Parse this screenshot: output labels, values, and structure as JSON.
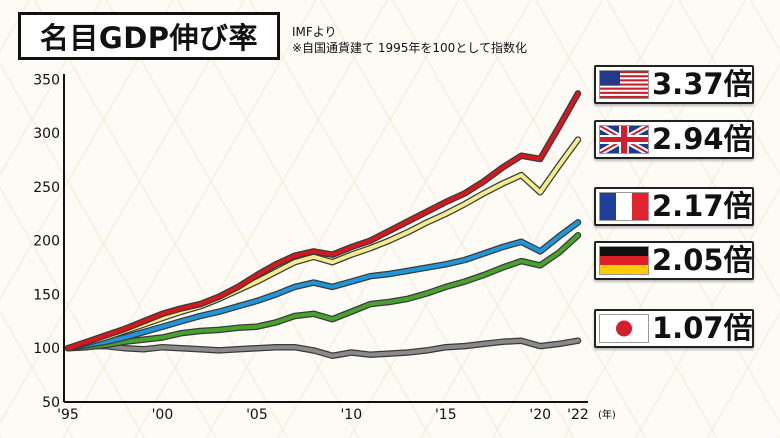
{
  "title": "名目GDP伸び率",
  "source_note": "IMFより",
  "currency_note": "※自国通貨建て 1995年を100として指数化",
  "colors": {
    "usa": "#d4191e",
    "uk": "#f3ec8d",
    "france": "#1f96d9",
    "germany": "#48a32c",
    "japan": "#8a8a8a"
  },
  "legend": [
    {
      "country": "usa",
      "flag": "us-flag-icon",
      "value": "3.37倍"
    },
    {
      "country": "uk",
      "flag": "uk-flag-icon",
      "value": "2.94倍"
    },
    {
      "country": "france",
      "flag": "france-flag-icon",
      "value": "2.17倍"
    },
    {
      "country": "germany",
      "flag": "germany-flag-icon",
      "value": "2.05倍"
    },
    {
      "country": "japan",
      "flag": "japan-flag-icon",
      "value": "1.07倍"
    }
  ],
  "chart_data": {
    "type": "line",
    "x": [
      1995,
      1996,
      1997,
      1998,
      1999,
      2000,
      2001,
      2002,
      2003,
      2004,
      2005,
      2006,
      2007,
      2008,
      2009,
      2010,
      2011,
      2012,
      2013,
      2014,
      2015,
      2016,
      2017,
      2018,
      2019,
      2020,
      2021,
      2022
    ],
    "x_tick_labels": [
      "'95",
      "'00",
      "'05",
      "'10",
      "'15",
      "'20",
      "'22"
    ],
    "x_tick_values": [
      1995,
      2000,
      2005,
      2010,
      2015,
      2020,
      2022
    ],
    "x_unit_label": "(年)",
    "y_tick_labels": [
      "50",
      "100",
      "150",
      "200",
      "250",
      "300",
      "350"
    ],
    "ylim": [
      50,
      355
    ],
    "grid": false,
    "series": [
      {
        "key": "usa",
        "values": [
          100,
          106,
          112,
          118,
          125,
          132,
          137,
          141,
          148,
          157,
          168,
          178,
          186,
          190,
          187,
          194,
          200,
          209,
          218,
          227,
          236,
          244,
          255,
          268,
          279,
          276,
          306,
          337
        ]
      },
      {
        "key": "uk",
        "values": [
          100,
          105,
          110,
          116,
          122,
          128,
          134,
          139,
          146,
          154,
          162,
          171,
          180,
          185,
          180,
          187,
          193,
          200,
          208,
          217,
          225,
          234,
          244,
          253,
          261,
          245,
          270,
          294
        ]
      },
      {
        "key": "france",
        "values": [
          100,
          103,
          106,
          110,
          115,
          120,
          125,
          130,
          134,
          139,
          144,
          150,
          157,
          161,
          157,
          162,
          167,
          169,
          172,
          175,
          178,
          182,
          188,
          194,
          199,
          190,
          204,
          217
        ]
      },
      {
        "key": "germany",
        "values": [
          100,
          101,
          103,
          106,
          108,
          110,
          114,
          116,
          117,
          119,
          120,
          124,
          130,
          132,
          127,
          134,
          141,
          143,
          146,
          151,
          157,
          162,
          168,
          175,
          181,
          177,
          189,
          205
        ]
      },
      {
        "key": "japan",
        "values": [
          100,
          102,
          102,
          100,
          99,
          101,
          100,
          99,
          98,
          99,
          100,
          101,
          101,
          98,
          93,
          96,
          94,
          95,
          96,
          98,
          101,
          102,
          104,
          106,
          107,
          102,
          104,
          107
        ]
      }
    ]
  }
}
